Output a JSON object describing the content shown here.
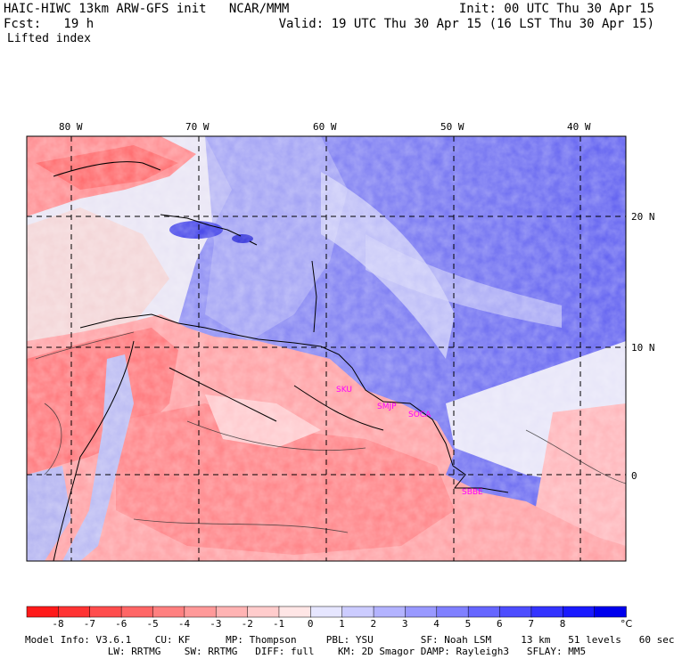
{
  "header": {
    "title": "HAIC-HIWC 13km ARW-GFS init   NCAR/MMM",
    "init": "Init: 00 UTC Thu 30 Apr 15",
    "fcst": "Fcst:   19 h",
    "valid": "Valid: 19 UTC Thu 30 Apr 15 (16 LST Thu 30 Apr 15)",
    "field": "Lifted index"
  },
  "map": {
    "lon_labels": [
      "80 W",
      "70 W",
      "60 W",
      "50 W",
      "40 W"
    ],
    "lat_labels": [
      "20 N",
      "10 N",
      "0"
    ],
    "stations": [
      "SKU",
      "SMJP",
      "SOCA",
      "SBBE"
    ],
    "station_color": "#ff00ff"
  },
  "colorbar": {
    "ticks": [
      "-8",
      "-7",
      "-6",
      "-5",
      "-4",
      "-3",
      "-2",
      "-1",
      "0",
      "1",
      "2",
      "3",
      "4",
      "5",
      "6",
      "7",
      "8"
    ],
    "unit": "°C",
    "colors": [
      "#ff1a1a",
      "#ff3333",
      "#ff4d4d",
      "#ff6666",
      "#ff8080",
      "#ff9999",
      "#ffb3b3",
      "#ffcccc",
      "#ffe6e6",
      "#e6e6ff",
      "#ccccff",
      "#b3b3ff",
      "#9999ff",
      "#8080ff",
      "#6666ff",
      "#4d4dff",
      "#3333ff",
      "#1a1aff",
      "#0000ee"
    ]
  },
  "footer": {
    "line1": "Model Info: V3.6.1    CU: KF      MP: Thompson     PBL: YSU        SF: Noah LSM     13 km   51 levels   60 sec",
    "line2": "              LW: RRTMG    SW: RRTMG   DIFF: full    KM: 2D Smagor DAMP: Rayleigh3   SFLAY: MM5"
  }
}
